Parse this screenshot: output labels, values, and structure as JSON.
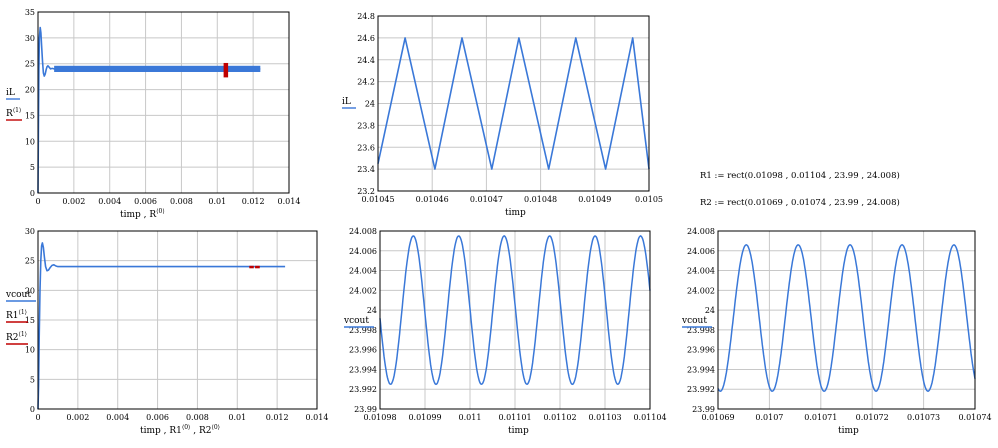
{
  "colors": {
    "series": "#3a78d8",
    "marker": "#c00000",
    "grid": "#c8c8c8",
    "frame": "#000000"
  },
  "formulas": [
    {
      "text": "R1 := rect(0.01098 , 0.01104 , 23.99 , 24.008)"
    },
    {
      "text": "R2 := rect(0.01069 , 0.01074 , 23.99 , 24.008)"
    }
  ],
  "chart_data": [
    {
      "type": "line",
      "xlabel": "timp , R",
      "xlabel_sup": "⟨0⟩",
      "xlim": [
        0,
        0.014
      ],
      "ylim": [
        0,
        35
      ],
      "xticks": [
        "0",
        "0.002",
        "0.004",
        "0.006",
        "0.008",
        "0.01",
        "0.012",
        "0.014"
      ],
      "yticks": [
        "0",
        "5",
        "10",
        "15",
        "20",
        "25",
        "30",
        "35"
      ],
      "legend": [
        {
          "name": "iL",
          "sup": "",
          "color": "#3a78d8"
        },
        {
          "name": "R",
          "sup": "⟨1⟩",
          "color": "#c00000"
        }
      ],
      "series": [
        {
          "name": "iL",
          "kind": "startup",
          "x": [
            0,
            2e-05,
            5e-05,
            8e-05,
            0.00012,
            0.00016,
            0.0002,
            0.00025,
            0.0003,
            0.00035,
            0.0004,
            0.00045,
            0.0005,
            0.00055,
            0.0006,
            0.0007,
            0.0008,
            0.0009,
            0.001,
            0.0012,
            0.0015,
            0.0124
          ],
          "y": [
            0,
            12,
            24,
            30,
            32,
            31,
            28.5,
            25.5,
            23.2,
            22.6,
            23.0,
            23.8,
            24.4,
            24.6,
            24.4,
            24.0,
            24.1,
            24.0,
            24.0,
            24.0,
            24.0,
            24.0
          ],
          "band": [
            23.4,
            24.6
          ],
          "band_from": 0.0009
        },
        {
          "name": "R",
          "kind": "marker",
          "x": [
            0.01045,
            0.01045
          ],
          "y": [
            22.5,
            25
          ]
        }
      ]
    },
    {
      "type": "line",
      "xlabel": "timp",
      "xlim": [
        0.01045,
        0.0105
      ],
      "ylim": [
        23.2,
        24.8
      ],
      "xticks": [
        "0.01045",
        "0.01046",
        "0.01047",
        "0.01048",
        "0.01049",
        "0.0105"
      ],
      "yticks": [
        "23.2",
        "23.4",
        "23.6",
        "23.8",
        "24",
        "24.2",
        "24.4",
        "24.6",
        "24.8"
      ],
      "legend": [
        {
          "name": "iL",
          "sup": "",
          "color": "#3a78d8"
        }
      ],
      "series": [
        {
          "name": "iL",
          "kind": "triangle",
          "x": [
            0.01045,
            0.010455,
            0.0104605,
            0.0104655,
            0.010471,
            0.010476,
            0.0104815,
            0.0104865,
            0.010492,
            0.010497,
            0.0105
          ],
          "y": [
            23.45,
            24.6,
            23.4,
            24.6,
            23.4,
            24.6,
            23.4,
            24.6,
            23.4,
            24.6,
            23.4
          ]
        }
      ]
    },
    {
      "type": "line",
      "xlabel": "timp , R1",
      "xlabel_sup": "⟨0⟩",
      "xlabel2": " , R2",
      "xlabel2_sup": "⟨0⟩",
      "xlim": [
        0,
        0.014
      ],
      "ylim": [
        0,
        30
      ],
      "xticks": [
        "0",
        "0.002",
        "0.004",
        "0.006",
        "0.008",
        "0.01",
        "0.012",
        "0.014"
      ],
      "yticks": [
        "0",
        "5",
        "10",
        "15",
        "20",
        "25",
        "30"
      ],
      "legend": [
        {
          "name": "vcout",
          "sup": "",
          "color": "#3a78d8"
        },
        {
          "name": "R1",
          "sup": "⟨1⟩",
          "color": "#c00000"
        },
        {
          "name": "R2",
          "sup": "⟨1⟩",
          "color": "#c00000"
        }
      ],
      "series": [
        {
          "name": "vcout",
          "kind": "startup",
          "x": [
            0,
            3e-05,
            6e-05,
            0.0001,
            0.00014,
            0.00018,
            0.00022,
            0.00027,
            0.00032,
            0.00038,
            0.00045,
            0.00052,
            0.0006,
            0.0007,
            0.0008,
            0.0009,
            0.001,
            0.0012,
            0.0124
          ],
          "y": [
            0,
            4,
            12,
            20,
            25,
            27.5,
            28,
            27.2,
            25.6,
            24.0,
            23.3,
            23.4,
            23.8,
            24.2,
            24.3,
            24.1,
            24.0,
            24.0,
            24.0
          ]
        },
        {
          "name": "R1",
          "kind": "marker",
          "x": [
            0.01098,
            0.01104
          ],
          "y": [
            23.99,
            24.008
          ]
        },
        {
          "name": "R2",
          "kind": "marker",
          "x": [
            0.01069,
            0.01074
          ],
          "y": [
            23.99,
            24.008
          ]
        }
      ]
    },
    {
      "type": "line",
      "xlabel": "timp",
      "xlim": [
        0.01098,
        0.01104
      ],
      "ylim": [
        23.99,
        24.008
      ],
      "xticks": [
        "0.01098",
        "0.01099",
        "0.011",
        "0.01101",
        "0.01102",
        "0.01103",
        "0.01104"
      ],
      "yticks": [
        "23.99",
        "23.992",
        "23.994",
        "23.996",
        "23.998",
        "24",
        "24.002",
        "24.004",
        "24.006",
        "24.008"
      ],
      "legend": [
        {
          "name": "vcout",
          "sup": "",
          "color": "#3a78d8"
        }
      ],
      "series": [
        {
          "name": "vcout",
          "kind": "sine",
          "x_start": 0.01098,
          "x_end": 0.01104,
          "period": 1.01e-05,
          "mean": 24.0,
          "amplitude": 0.0075,
          "peak_at": 0.0109874
        }
      ]
    },
    {
      "type": "line",
      "xlabel": "timp",
      "xlim": [
        0.01069,
        0.01074
      ],
      "ylim": [
        23.99,
        24.008
      ],
      "xticks": [
        "0.01069",
        "0.0107",
        "0.01071",
        "0.01072",
        "0.01073",
        "0.01074"
      ],
      "yticks": [
        "23.99",
        "23.992",
        "23.994",
        "23.996",
        "23.998",
        "24",
        "24.002",
        "24.004",
        "24.006",
        "24.008"
      ],
      "legend": [
        {
          "name": "vcout",
          "sup": "",
          "color": "#3a78d8"
        }
      ],
      "series": [
        {
          "name": "vcout",
          "kind": "sine",
          "x_start": 0.01069,
          "x_end": 0.01074,
          "period": 1.01e-05,
          "mean": 23.9992,
          "amplitude": 0.0074,
          "peak_at": 0.0106955
        }
      ]
    }
  ]
}
